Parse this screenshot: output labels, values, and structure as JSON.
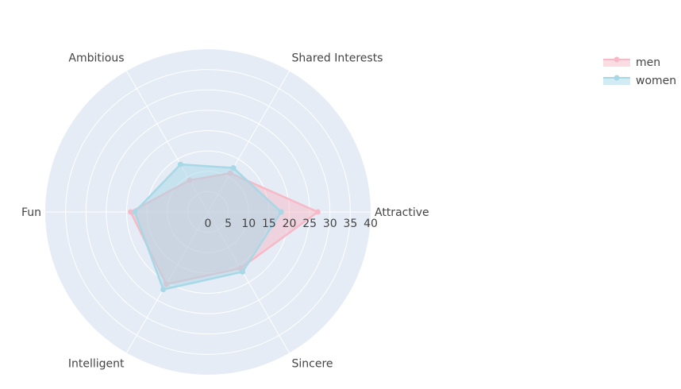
{
  "chart_data": {
    "type": "radar",
    "categories": [
      "Attractive",
      "Sincere",
      "Intelligent",
      "Fun",
      "Ambitious",
      "Shared Interests"
    ],
    "radial_range": [
      0,
      40
    ],
    "radial_ticks": [
      0,
      5,
      10,
      15,
      20,
      25,
      30,
      35,
      40
    ],
    "grid": true,
    "legend_position": "top-right",
    "series": [
      {
        "name": "men",
        "color": "#f7b9c6",
        "values": [
          27,
          16,
          20.5,
          19,
          9,
          11
        ]
      },
      {
        "name": "women",
        "color": "#a8d8e6",
        "values": [
          18,
          17,
          22,
          18,
          13.5,
          12.5
        ]
      }
    ]
  }
}
